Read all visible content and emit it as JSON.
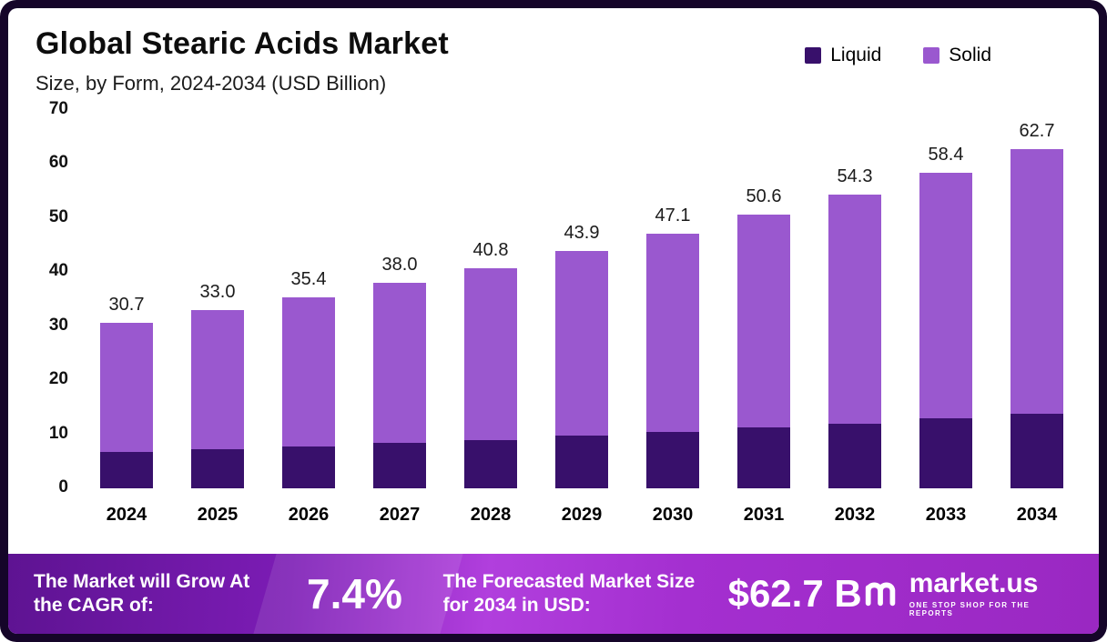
{
  "chart_data": {
    "type": "bar",
    "stacked": true,
    "title": "Global Stearic Acids Market",
    "subtitle": "Size, by Form, 2024-2034 (USD Billion)",
    "categories": [
      "2024",
      "2025",
      "2026",
      "2027",
      "2028",
      "2029",
      "2030",
      "2031",
      "2032",
      "2033",
      "2034"
    ],
    "series": [
      {
        "name": "Liquid",
        "color": "#38106b",
        "values": [
          6.7,
          7.2,
          7.8,
          8.4,
          9.0,
          9.7,
          10.4,
          11.2,
          12.0,
          12.9,
          13.8
        ]
      },
      {
        "name": "Solid",
        "color": "#9a58cf",
        "values": [
          24.0,
          25.8,
          27.6,
          29.6,
          31.8,
          34.2,
          36.7,
          39.4,
          42.3,
          45.5,
          48.9
        ]
      }
    ],
    "totals": [
      30.7,
      33.0,
      35.4,
      38.0,
      40.8,
      43.9,
      47.1,
      50.6,
      54.3,
      58.4,
      62.7
    ],
    "xlabel": "",
    "ylabel": "",
    "ylim": [
      0,
      70
    ],
    "yticks": [
      0,
      10,
      20,
      30,
      40,
      50,
      60,
      70
    ],
    "grid": false,
    "legend_position": "top-right"
  },
  "footer": {
    "cagr_label": "The Market will Grow At the CAGR of:",
    "cagr_value": "7.4%",
    "forecast_label": "The Forecasted Market Size for 2034 in USD:",
    "forecast_value": "$62.7 B",
    "brand_name": "market.us",
    "brand_tagline": "ONE STOP SHOP FOR THE REPORTS"
  },
  "colors": {
    "frame": "#150529",
    "liquid": "#38106b",
    "solid": "#9a58cf",
    "footer_gradient_start": "#5e1392",
    "footer_gradient_mid": "#b13fdd",
    "footer_gradient_end": "#9a28c2"
  }
}
